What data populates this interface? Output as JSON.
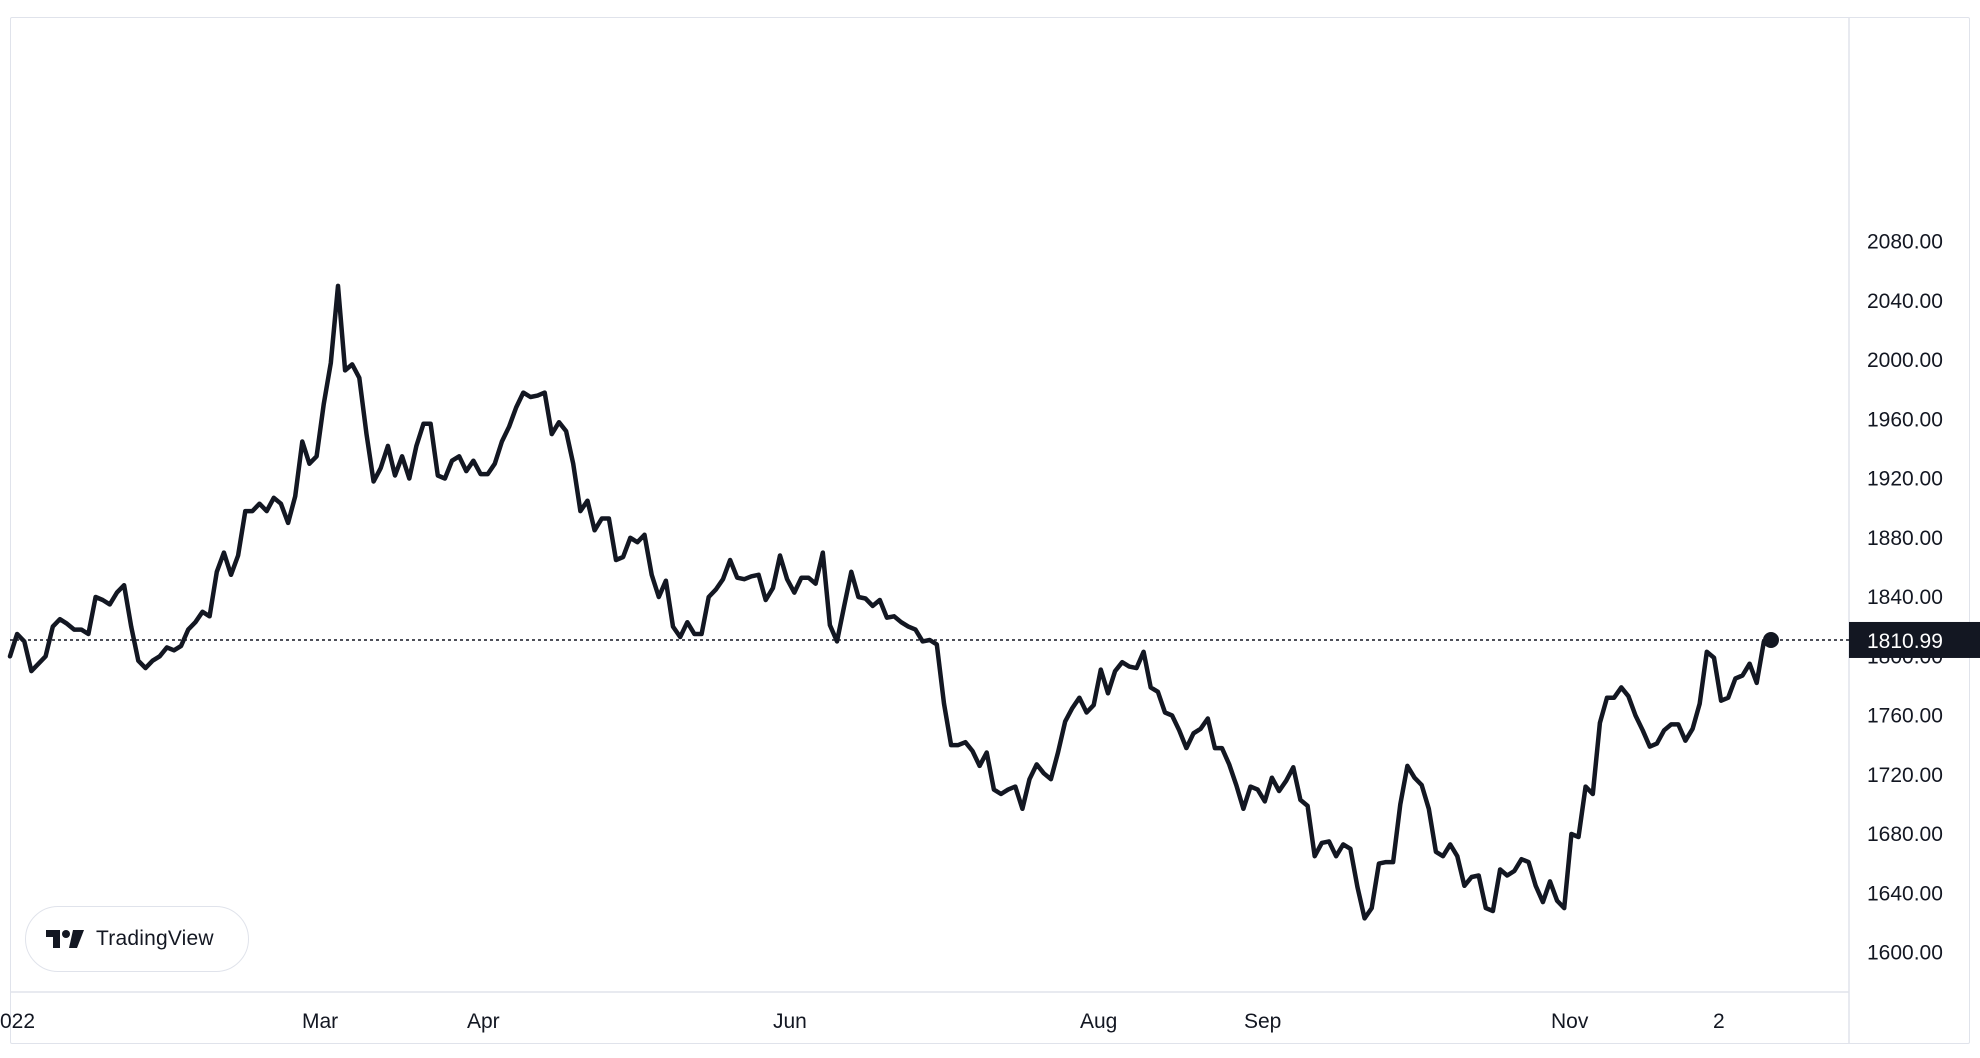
{
  "chart_data": {
    "type": "line",
    "x_labels": [
      "022",
      "Mar",
      "Apr",
      "Jun",
      "Aug",
      "Sep",
      "Nov",
      "2"
    ],
    "y_ticks": [
      "2080.00",
      "2040.00",
      "2000.00",
      "1960.00",
      "1920.00",
      "1880.00",
      "1840.00",
      "1800.00",
      "1760.00",
      "1720.00",
      "1680.00",
      "1640.00",
      "1600.00"
    ],
    "ylim": [
      1580,
      2103
    ],
    "last_price": 1810.99,
    "last_price_label": "1810.99",
    "line_color": "#131722",
    "grid": false,
    "series": [
      {
        "values": [
          1800,
          1815,
          1810,
          1790,
          1795,
          1800,
          1820,
          1825,
          1822,
          1818,
          1818,
          1815,
          1840,
          1838,
          1835,
          1843,
          1848,
          1820,
          1797,
          1792,
          1797,
          1800,
          1806,
          1804,
          1807,
          1818,
          1823,
          1830,
          1827,
          1857,
          1870,
          1855,
          1868,
          1898,
          1898,
          1903,
          1898,
          1907,
          1903,
          1890,
          1908,
          1945,
          1930,
          1935,
          1970,
          1998,
          2050,
          1993,
          1997,
          1988,
          1950,
          1918,
          1927,
          1942,
          1922,
          1935,
          1920,
          1942,
          1957,
          1957,
          1922,
          1920,
          1932,
          1935,
          1925,
          1932,
          1923,
          1923,
          1930,
          1945,
          1955,
          1968,
          1978,
          1975,
          1976,
          1978,
          1950,
          1958,
          1952,
          1930,
          1898,
          1905,
          1885,
          1893,
          1893,
          1865,
          1867,
          1880,
          1877,
          1882,
          1855,
          1840,
          1851,
          1820,
          1813,
          1823,
          1815,
          1815,
          1840,
          1845,
          1852,
          1865,
          1853,
          1852,
          1854,
          1855,
          1838,
          1846,
          1868,
          1852,
          1843,
          1853,
          1853,
          1849,
          1870,
          1821,
          1810,
          1834,
          1857,
          1840,
          1839,
          1834,
          1838,
          1826,
          1827,
          1823,
          1820,
          1818,
          1810,
          1811,
          1808,
          1768,
          1740,
          1740,
          1742,
          1736,
          1726,
          1735,
          1710,
          1707,
          1710,
          1712,
          1697,
          1717,
          1727,
          1721,
          1717,
          1735,
          1756,
          1765,
          1772,
          1762,
          1767,
          1791,
          1775,
          1790,
          1796,
          1793,
          1792,
          1803,
          1779,
          1776,
          1762,
          1760,
          1750,
          1738,
          1748,
          1751,
          1758,
          1738,
          1738,
          1727,
          1713,
          1697,
          1712,
          1710,
          1702,
          1718,
          1709,
          1716,
          1725,
          1703,
          1699,
          1665,
          1674,
          1675,
          1665,
          1673,
          1670,
          1644,
          1623,
          1630,
          1660,
          1661,
          1661,
          1700,
          1726,
          1718,
          1713,
          1697,
          1668,
          1665,
          1673,
          1665,
          1645,
          1651,
          1652,
          1630,
          1628,
          1656,
          1652,
          1655,
          1663,
          1661,
          1645,
          1634,
          1648,
          1635,
          1630,
          1680,
          1678,
          1712,
          1707,
          1755,
          1772,
          1772,
          1779,
          1773,
          1760,
          1750,
          1739,
          1741,
          1750,
          1754,
          1754,
          1743,
          1751,
          1768,
          1803,
          1799,
          1770,
          1772,
          1785,
          1787,
          1795,
          1782,
          1810,
          1810.99
        ]
      }
    ]
  },
  "brand": {
    "logo_text": "TradingView",
    "logo_icon": "tradingview-logo-icon"
  }
}
